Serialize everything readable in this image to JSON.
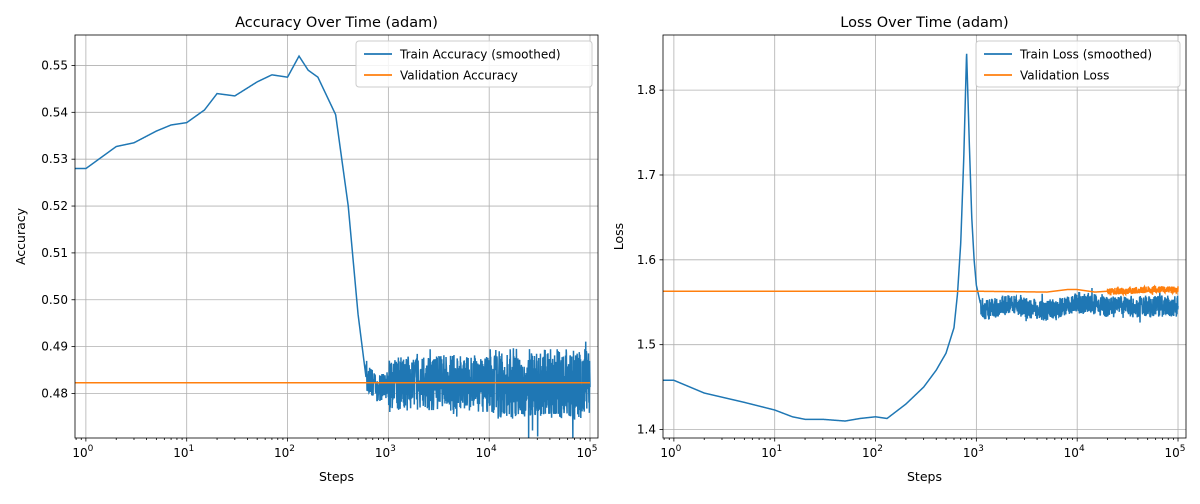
{
  "chart_data": [
    {
      "type": "line",
      "title": "Accuracy Over Time (adam)",
      "xlabel": "Steps",
      "ylabel": "Accuracy",
      "xscale": "log",
      "xlim": [
        0.78,
        120000
      ],
      "ylim": [
        0.4705,
        0.5565
      ],
      "x_tick_values": [
        1,
        10,
        100,
        1000,
        10000,
        100000
      ],
      "x_tick_labels": [
        {
          "base": "10",
          "exp": "0"
        },
        {
          "base": "10",
          "exp": "1"
        },
        {
          "base": "10",
          "exp": "2"
        },
        {
          "base": "10",
          "exp": "3"
        },
        {
          "base": "10",
          "exp": "4"
        },
        {
          "base": "10",
          "exp": "5"
        }
      ],
      "y_ticks": [
        0.48,
        0.49,
        0.5,
        0.51,
        0.52,
        0.53,
        0.54,
        0.55
      ],
      "y_tick_labels": [
        "0.48",
        "0.49",
        "0.50",
        "0.51",
        "0.52",
        "0.53",
        "0.54",
        "0.55"
      ],
      "grid": true,
      "legend_position": "top-right",
      "series": [
        {
          "name": "Train Accuracy (smoothed)",
          "color": "#1f77b4",
          "x": [
            0.78,
            1,
            2,
            3,
            5,
            7,
            10,
            15,
            20,
            30,
            50,
            70,
            100,
            130,
            160,
            200,
            300,
            400,
            500,
            600,
            700,
            800,
            1000,
            2000,
            5000,
            10000,
            20000,
            50000,
            100000
          ],
          "y": [
            0.528,
            0.528,
            0.5327,
            0.5335,
            0.536,
            0.5373,
            0.5378,
            0.5405,
            0.544,
            0.5435,
            0.5465,
            0.548,
            0.5475,
            0.552,
            0.549,
            0.5475,
            0.5395,
            0.52,
            0.497,
            0.4835,
            0.482,
            0.481,
            0.482,
            0.4825,
            0.4823,
            0.482,
            0.4822,
            0.482,
            0.482
          ],
          "noise_band": [
            {
              "x": [
                600,
                1000
              ],
              "amplitude": 0.003
            },
            {
              "x": [
                1000,
                10000
              ],
              "amplitude": 0.006
            },
            {
              "x": [
                10000,
                100000
              ],
              "amplitude": 0.0075
            }
          ]
        },
        {
          "name": "Validation Accuracy",
          "color": "#ff7f0e",
          "x": [
            0.78,
            100000
          ],
          "y": [
            0.4823,
            0.4823
          ]
        }
      ]
    },
    {
      "type": "line",
      "title": "Loss Over Time (adam)",
      "xlabel": "Steps",
      "ylabel": "Loss",
      "xscale": "log",
      "xlim": [
        0.78,
        120000
      ],
      "ylim": [
        1.39,
        1.865
      ],
      "x_tick_values": [
        1,
        10,
        100,
        1000,
        10000,
        100000
      ],
      "x_tick_labels": [
        {
          "base": "10",
          "exp": "0"
        },
        {
          "base": "10",
          "exp": "1"
        },
        {
          "base": "10",
          "exp": "2"
        },
        {
          "base": "10",
          "exp": "3"
        },
        {
          "base": "10",
          "exp": "4"
        },
        {
          "base": "10",
          "exp": "5"
        }
      ],
      "y_ticks": [
        1.4,
        1.5,
        1.6,
        1.7,
        1.8
      ],
      "y_tick_labels": [
        "1.4",
        "1.5",
        "1.6",
        "1.7",
        "1.8"
      ],
      "grid": true,
      "legend_position": "top-right",
      "series": [
        {
          "name": "Train Loss (smoothed)",
          "color": "#1f77b4",
          "x": [
            0.78,
            1,
            2,
            5,
            10,
            15,
            20,
            30,
            50,
            70,
            100,
            130,
            200,
            300,
            400,
            500,
            600,
            650,
            700,
            750,
            800,
            850,
            900,
            950,
            1000,
            1100,
            1200,
            2000,
            5000,
            10000,
            20000,
            50000,
            100000
          ],
          "y": [
            1.458,
            1.458,
            1.443,
            1.432,
            1.423,
            1.415,
            1.412,
            1.412,
            1.41,
            1.413,
            1.415,
            1.413,
            1.43,
            1.45,
            1.47,
            1.49,
            1.52,
            1.56,
            1.62,
            1.72,
            1.845,
            1.74,
            1.65,
            1.6,
            1.57,
            1.548,
            1.54,
            1.547,
            1.54,
            1.55,
            1.545,
            1.545,
            1.545
          ],
          "noise_band": [
            {
              "x": [
                1100,
                10000
              ],
              "amplitude": 0.012
            },
            {
              "x": [
                10000,
                100000
              ],
              "amplitude": 0.013
            }
          ]
        },
        {
          "name": "Validation Loss",
          "color": "#ff7f0e",
          "x": [
            0.78,
            1000,
            5000,
            8000,
            10000,
            15000,
            20000,
            30000,
            50000,
            100000
          ],
          "y": [
            1.563,
            1.563,
            1.562,
            1.565,
            1.565,
            1.562,
            1.563,
            1.563,
            1.565,
            1.565
          ],
          "noise_band": [
            {
              "x": [
                20000,
                100000
              ],
              "amplitude": 0.004
            }
          ]
        }
      ]
    }
  ]
}
